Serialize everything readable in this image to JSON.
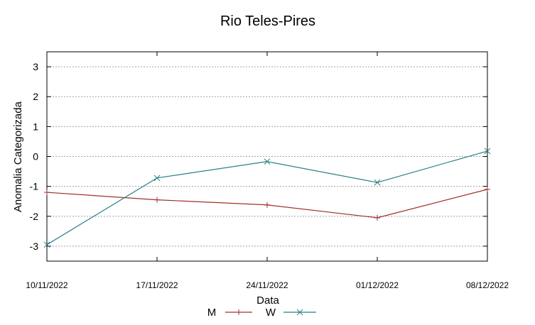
{
  "chart_data": {
    "type": "line",
    "title": "Rio Teles-Pires",
    "xlabel": "Data",
    "ylabel": "Anomalia Categorizada",
    "categories": [
      "10/11/2022",
      "17/11/2022",
      "24/11/2022",
      "01/12/2022",
      "08/12/2022"
    ],
    "yticks": [
      -3,
      -2,
      -1,
      0,
      1,
      2,
      3
    ],
    "ylim": [
      -3.5,
      3.5
    ],
    "grid": "horizontal dotted",
    "legend_position": "bottom",
    "series": [
      {
        "name": "M",
        "values": [
          -1.2,
          -1.45,
          -1.62,
          -2.05,
          -1.1
        ],
        "color": "#a0302a",
        "marker": "plus"
      },
      {
        "name": "W",
        "values": [
          -2.95,
          -0.72,
          -0.17,
          -0.87,
          0.18
        ],
        "color": "#2a7f86",
        "marker": "x"
      }
    ]
  }
}
